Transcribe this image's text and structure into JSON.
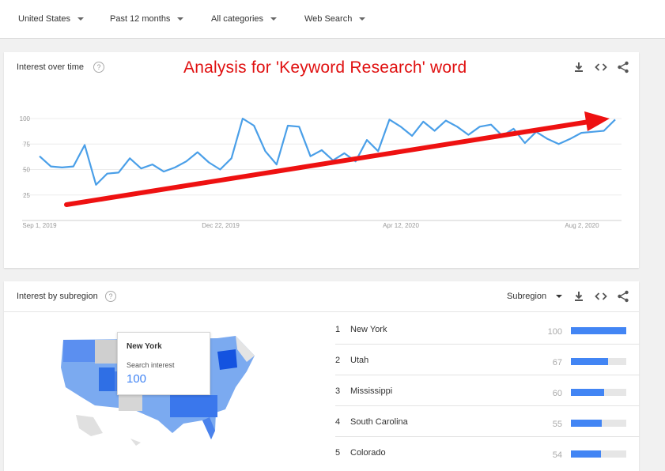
{
  "filters": [
    {
      "label": "United States"
    },
    {
      "label": "Past 12 months"
    },
    {
      "label": "All categories"
    },
    {
      "label": "Web Search"
    }
  ],
  "interest_over_time": {
    "title": "Interest over time",
    "annotation": "Analysis for 'Keyword Research' word",
    "y_ticks": [
      "100",
      "75",
      "50",
      "25"
    ],
    "x_ticks": [
      "Sep 1, 2019",
      "Dec 22, 2019",
      "Apr 12, 2020",
      "Aug 2, 2020"
    ]
  },
  "chart_data": {
    "type": "line",
    "title": "",
    "xlabel": "",
    "ylabel": "",
    "ylim": [
      0,
      100
    ],
    "x_ticks": [
      "Sep 1, 2019",
      "Dec 22, 2019",
      "Apr 12, 2020",
      "Aug 2, 2020"
    ],
    "y_ticks": [
      25,
      50,
      75,
      100
    ],
    "series": [
      {
        "values": [
          63,
          53,
          52,
          53,
          74,
          35,
          46,
          47,
          61,
          51,
          55,
          48,
          52,
          58,
          67,
          57,
          50,
          61,
          100,
          93,
          68,
          55,
          93,
          92,
          63,
          69,
          59,
          66,
          58,
          79,
          68,
          99,
          92,
          83,
          97,
          88,
          98,
          92,
          84,
          92,
          94,
          83,
          90,
          76,
          87,
          80,
          75,
          80,
          86,
          87,
          88,
          99
        ]
      }
    ],
    "color": "#4a9fe8"
  },
  "interest_by_subregion": {
    "title": "Interest by subregion",
    "dropdown": "Subregion",
    "tooltip": {
      "region": "New York",
      "label": "Search interest",
      "value": "100"
    },
    "rows": [
      {
        "rank": "1",
        "name": "New York",
        "value": "100",
        "score": 100
      },
      {
        "rank": "2",
        "name": "Utah",
        "value": "67",
        "score": 67
      },
      {
        "rank": "3",
        "name": "Mississippi",
        "value": "60",
        "score": 60
      },
      {
        "rank": "4",
        "name": "South Carolina",
        "value": "55",
        "score": 55
      },
      {
        "rank": "5",
        "name": "Colorado",
        "value": "54",
        "score": 54
      }
    ]
  },
  "colors": {
    "accent": "#4285f4",
    "line": "#4a9fe8",
    "annotation": "#e01010"
  },
  "icons": [
    "download-icon",
    "embed-icon",
    "share-icon",
    "help-icon",
    "chevron-down-icon"
  ]
}
